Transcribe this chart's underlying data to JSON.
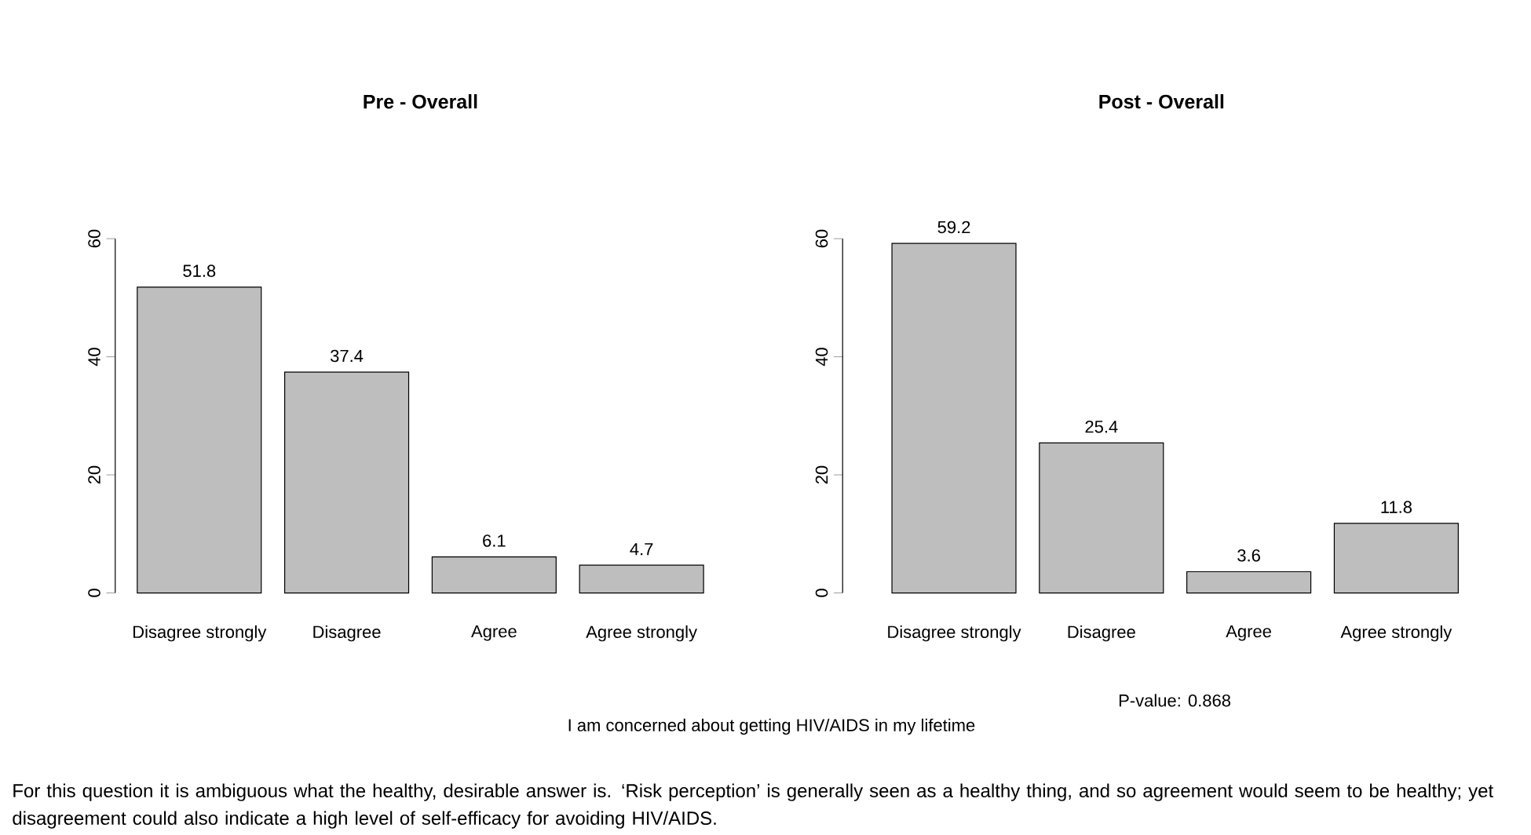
{
  "chart_data": [
    {
      "type": "bar",
      "title": "Pre - Overall",
      "categories": [
        "Disagree strongly",
        "Disagree",
        "Agree",
        "Agree strongly"
      ],
      "values": [
        51.8,
        37.4,
        6.1,
        4.7
      ],
      "color": "#bebebe",
      "ylim": [
        0,
        60
      ],
      "yticks": [
        0,
        20,
        40,
        60
      ],
      "data_labels": true,
      "annotations": [
        "I am concerned about getting HIV/AIDS in my lifetime",
        "For this question it is ambiguous what the healthy, desirable answer is. ‘Risk perception’ is generally seen as a healthy thing, and so agreement would seem to be healthy; yet disagreement could also indicate a high level of self-efficacy for avoiding HIV/AIDS."
      ]
    },
    {
      "type": "bar",
      "title": "Post - Overall",
      "categories": [
        "Disagree strongly",
        "Disagree",
        "Agree",
        "Agree strongly"
      ],
      "values": [
        59.2,
        25.4,
        3.6,
        11.8
      ],
      "color": "#bebebe",
      "ylim": [
        0,
        60
      ],
      "yticks": [
        0,
        20,
        40,
        60
      ],
      "data_labels": true,
      "annotations": [
        "P-value: 0.868"
      ]
    }
  ]
}
